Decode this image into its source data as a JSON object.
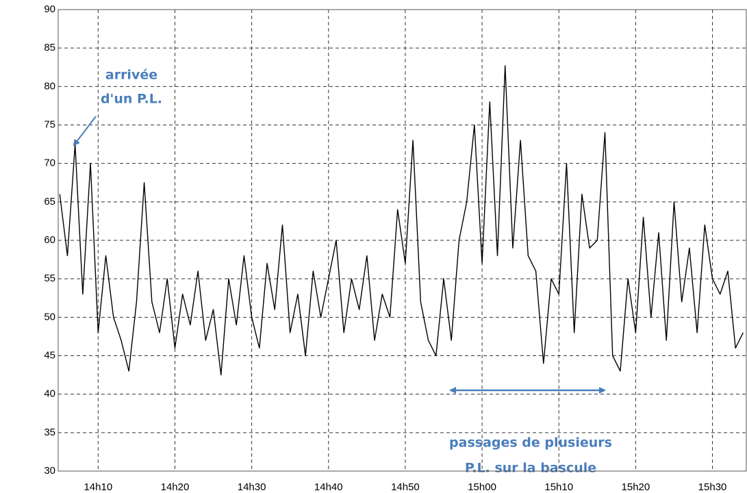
{
  "chart_data": {
    "type": "line",
    "x": [
      845,
      846,
      847,
      848,
      849,
      850,
      851,
      852,
      853,
      854,
      855,
      856,
      857,
      858,
      859,
      860,
      861,
      862,
      863,
      864,
      865,
      866,
      867,
      868,
      869,
      870,
      871,
      872,
      873,
      874,
      875,
      876,
      877,
      878,
      879,
      880,
      881,
      882,
      883,
      884,
      885,
      886,
      887,
      888,
      889,
      890,
      891,
      892,
      893,
      894,
      895,
      896,
      897,
      898,
      899,
      900,
      901,
      902,
      903,
      904,
      905,
      906,
      907,
      908,
      909,
      910,
      911,
      912,
      913,
      914,
      915,
      916,
      917,
      918,
      919,
      920,
      921,
      922,
      923,
      924,
      925,
      926,
      927,
      928,
      929,
      930,
      931,
      932,
      933,
      934
    ],
    "series": [
      {
        "name": null,
        "color": "#000000",
        "values": [
          66,
          58,
          72.5,
          53,
          70,
          48,
          58,
          50,
          47,
          43,
          52,
          67.5,
          52,
          48,
          55,
          46,
          53,
          49,
          56,
          47,
          51,
          42.5,
          55,
          49,
          58,
          50,
          46,
          57,
          51,
          62,
          48,
          53,
          45,
          56,
          50,
          55,
          60,
          48,
          55,
          51,
          58,
          47,
          53,
          50,
          64,
          57,
          73,
          52,
          47,
          45,
          55,
          47,
          60,
          65,
          75,
          57,
          78,
          58,
          82.7,
          59,
          73,
          58,
          56,
          44,
          55,
          53,
          70,
          48,
          66,
          59,
          60,
          74,
          45,
          43,
          55,
          48,
          63,
          50,
          61,
          47,
          65,
          52,
          59,
          48,
          62,
          55,
          53,
          56,
          46,
          48
        ]
      }
    ],
    "xlim": [
      844.8,
      934.5
    ],
    "xticks": [
      {
        "value": 850,
        "label": "14h10"
      },
      {
        "value": 860,
        "label": "14h20"
      },
      {
        "value": 870,
        "label": "14h30"
      },
      {
        "value": 880,
        "label": "14h40"
      },
      {
        "value": 890,
        "label": "14h50"
      },
      {
        "value": 900,
        "label": "15h00"
      },
      {
        "value": 910,
        "label": "15h10"
      },
      {
        "value": 920,
        "label": "15h20"
      },
      {
        "value": 930,
        "label": "15h30"
      }
    ],
    "ylim": [
      30,
      90
    ],
    "yticks": [
      30,
      35,
      40,
      45,
      50,
      55,
      60,
      65,
      70,
      75,
      80,
      85,
      90
    ],
    "grid": true,
    "annotations": [
      "arrivée",
      "d'un P.L.",
      "passages de plusieurs",
      "P.L. sur la bascule"
    ],
    "annotation_color": "#4a7ebb"
  }
}
